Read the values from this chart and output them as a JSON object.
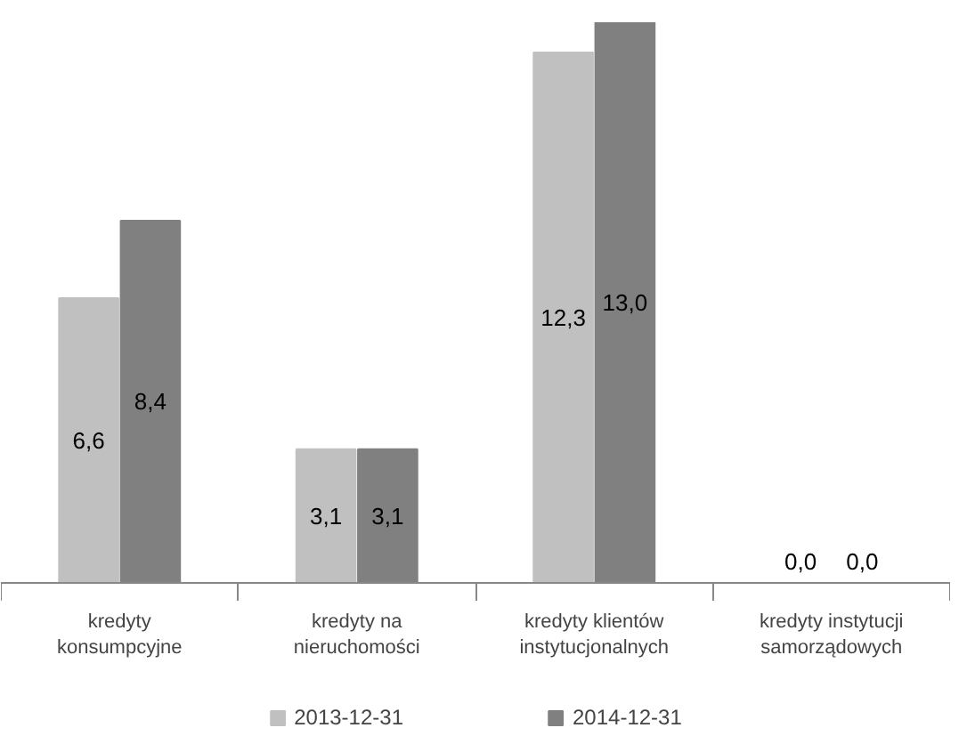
{
  "chart_data": {
    "type": "bar",
    "categories": [
      "kredyty\nkonsumpcyjne",
      "kredyty na\nnieruchomości",
      "kredyty klientów\ninstytucjonalnych",
      "kredyty instytucji\nsamorządowych"
    ],
    "series": [
      {
        "name": "2013-12-31",
        "color": "#c0c0c0",
        "values": [
          6.6,
          3.1,
          12.3,
          0.0
        ],
        "value_labels": [
          "6,6",
          "3,1",
          "12,3",
          "0,0"
        ]
      },
      {
        "name": "2014-12-31",
        "color": "#808080",
        "values": [
          8.4,
          3.1,
          13.0,
          0.0
        ],
        "value_labels": [
          "8,4",
          "3,1",
          "13,0",
          "0,0"
        ]
      }
    ],
    "legend": "bottom"
  }
}
